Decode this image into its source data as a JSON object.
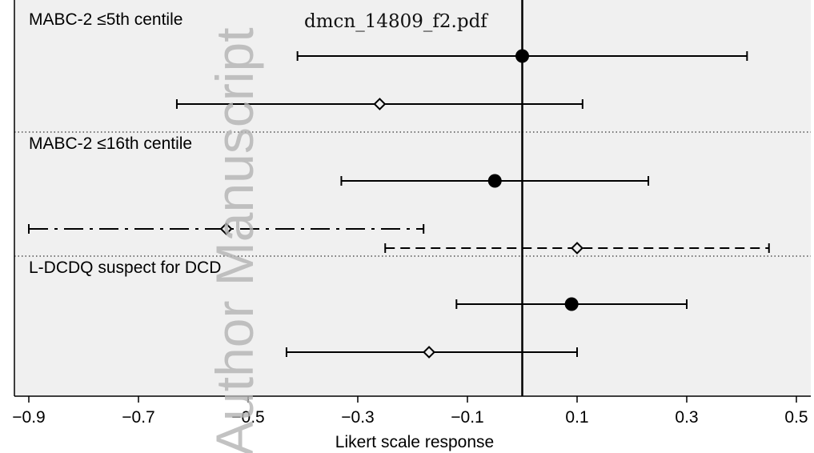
{
  "document_title": "dmcn_14809_f2.pdf",
  "watermark": "Author Manuscript",
  "chart_data": {
    "type": "forest",
    "xlabel": "Likert scale response",
    "xlim": [
      -0.91,
      0.52
    ],
    "x_ticks": [
      -0.9,
      -0.7,
      -0.5,
      -0.3,
      -0.1,
      0.1,
      0.3,
      0.5
    ],
    "x_tick_labels": [
      "−0.9",
      "−0.7",
      "−0.5",
      "−0.3",
      "−0.1",
      "0.1",
      "0.3",
      "0.5"
    ],
    "reference_line": 0,
    "colors": {
      "panel_background": "#f0f0f0",
      "marks": "#000000",
      "watermark": "#b4b4b4"
    },
    "panels": [
      {
        "label": "MABC-2 ≤5th centile",
        "rows": [
          {
            "estimate": 0.0,
            "ci": [
              -0.41,
              0.41
            ],
            "marker": "filled-circle",
            "line": "solid"
          },
          {
            "estimate": -0.26,
            "ci": [
              -0.63,
              0.11
            ],
            "marker": "hollow-diamond",
            "line": "solid"
          }
        ]
      },
      {
        "label": "MABC-2 ≤16th centile",
        "rows": [
          {
            "estimate": -0.05,
            "ci": [
              -0.33,
              0.23
            ],
            "marker": "filled-circle",
            "line": "solid"
          },
          {
            "estimate": -0.54,
            "ci": [
              -0.9,
              -0.18
            ],
            "marker": "hollow-diamond",
            "line": "dash-dot"
          },
          {
            "estimate": 0.1,
            "ci": [
              -0.25,
              0.45
            ],
            "marker": "hollow-diamond",
            "line": "dashed"
          }
        ]
      },
      {
        "label": "L-DCDQ suspect for DCD",
        "rows": [
          {
            "estimate": 0.09,
            "ci": [
              -0.12,
              0.3
            ],
            "marker": "filled-circle",
            "line": "solid"
          },
          {
            "estimate": -0.17,
            "ci": [
              -0.43,
              0.1
            ],
            "marker": "hollow-diamond",
            "line": "solid"
          }
        ]
      }
    ]
  }
}
